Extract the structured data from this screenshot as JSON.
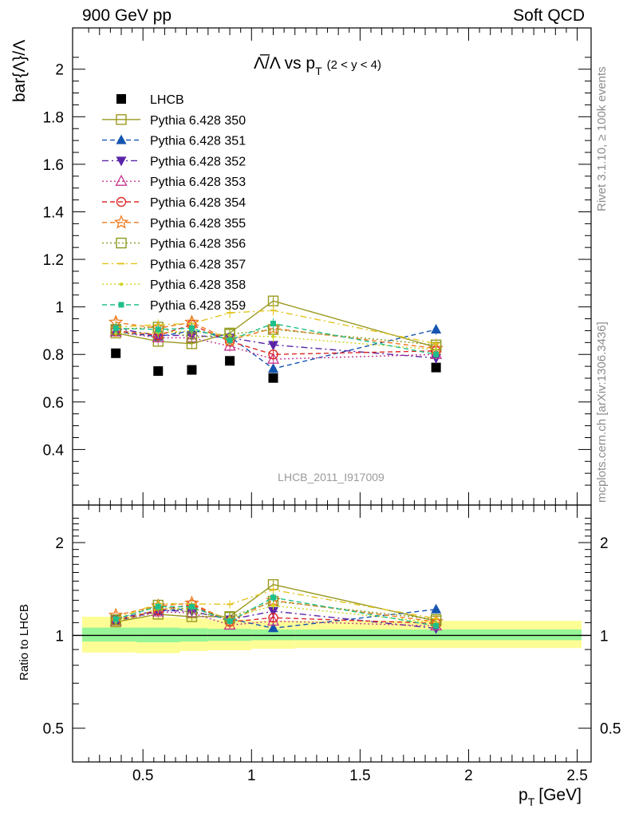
{
  "header": {
    "left": "900 GeV pp",
    "right": "Soft QCD"
  },
  "side_labels": {
    "rivet": "Rivet 3.1.10, ≥ 100k events",
    "mcplots": "mcplots.cern.ch [arXiv:1306.3436]"
  },
  "chart_data": [
    {
      "type": "scatter",
      "title_main": "Λ̅/Λ vs p",
      "title_sub": "T",
      "title_cut": "(2 < y < 4)",
      "ylabel": "bar{Λ}/Λ",
      "watermark": "LHCB_2011_I917009",
      "xlim": [
        0.22,
        2.52
      ],
      "ylim": [
        0.21,
        2.13
      ],
      "x_ticks": [
        "0.5",
        "1",
        "1.5",
        "2",
        "2.5"
      ],
      "y_ticks": [
        "0.4",
        "0.6",
        "0.8",
        "1",
        "1.2",
        "1.4",
        "1.6",
        "1.8",
        "2"
      ],
      "x": [
        0.375,
        0.57,
        0.725,
        0.9,
        1.1,
        1.85
      ],
      "legend_position": "top-left",
      "series": [
        {
          "name": "LHCB",
          "color": "#000000",
          "marker": "filled-square",
          "line": "none",
          "values": [
            0.805,
            0.73,
            0.735,
            0.773,
            0.701,
            0.745
          ]
        },
        {
          "name": "Pythia 6.428 350",
          "color": "#9a9a1f",
          "marker": "open-square",
          "line": "solid",
          "values": [
            0.89,
            0.855,
            0.845,
            0.89,
            1.025,
            0.83
          ]
        },
        {
          "name": "Pythia 6.428 351",
          "color": "#1555b0",
          "marker": "filled-triangle-up",
          "line": "dashed",
          "values": [
            0.895,
            0.875,
            0.9,
            0.875,
            0.74,
            0.905
          ]
        },
        {
          "name": "Pythia 6.428 352",
          "color": "#5a24a8",
          "marker": "filled-triangle-down",
          "line": "dashdot",
          "values": [
            0.91,
            0.88,
            0.88,
            0.87,
            0.84,
            0.785
          ]
        },
        {
          "name": "Pythia 6.428 353",
          "color": "#c4358f",
          "marker": "open-triangle-up",
          "line": "dotted",
          "values": [
            0.895,
            0.87,
            0.87,
            0.835,
            0.78,
            0.8
          ]
        },
        {
          "name": "Pythia 6.428 354",
          "color": "#dd2a2a",
          "marker": "open-circle",
          "line": "dashed",
          "values": [
            0.9,
            0.88,
            0.925,
            0.855,
            0.8,
            0.815
          ]
        },
        {
          "name": "Pythia 6.428 355",
          "color": "#ee7a1f",
          "marker": "open-star",
          "line": "dashed",
          "values": [
            0.935,
            0.91,
            0.935,
            0.86,
            0.91,
            0.825
          ]
        },
        {
          "name": "Pythia 6.428 356",
          "color": "#8b9a1f",
          "marker": "open-square",
          "line": "dotted",
          "values": [
            0.905,
            0.915,
            0.87,
            0.885,
            0.905,
            0.84
          ]
        },
        {
          "name": "Pythia 6.428 357",
          "color": "#e3c41f",
          "marker": "dash",
          "line": "dashdot",
          "values": [
            0.915,
            0.925,
            0.93,
            0.975,
            0.985,
            0.845
          ]
        },
        {
          "name": "Pythia 6.428 358",
          "color": "#cfd41f",
          "marker": "small-dot",
          "line": "dotted",
          "values": [
            0.89,
            0.89,
            0.9,
            0.88,
            0.875,
            0.82
          ]
        },
        {
          "name": "Pythia 6.428 359",
          "color": "#1fbf8a",
          "marker": "filled-square-small",
          "line": "dashed",
          "values": [
            0.91,
            0.905,
            0.91,
            0.86,
            0.93,
            0.8
          ]
        }
      ]
    },
    {
      "type": "scatter",
      "ylabel": "Ratio to LHCB",
      "xlabel": "p",
      "xlabel_sub": "T",
      "xlabel_unit": "[GeV]",
      "y_scale": "log",
      "ylim": [
        0.42,
        2.45
      ],
      "y_ticks": [
        "0.5",
        "1",
        "2"
      ],
      "reference": 1,
      "band_bins": [
        0.22,
        0.47,
        0.67,
        0.8,
        1.0,
        1.2,
        2.52
      ],
      "band_inner": [
        [
          0.955,
          1.06
        ],
        [
          0.95,
          1.06
        ],
        [
          0.955,
          1.055
        ],
        [
          0.96,
          1.05
        ],
        [
          0.965,
          1.045
        ],
        [
          0.965,
          1.045
        ]
      ],
      "band_outer": [
        [
          0.88,
          1.15
        ],
        [
          0.875,
          1.145
        ],
        [
          0.89,
          1.135
        ],
        [
          0.895,
          1.125
        ],
        [
          0.905,
          1.115
        ],
        [
          0.91,
          1.115
        ]
      ]
    }
  ]
}
